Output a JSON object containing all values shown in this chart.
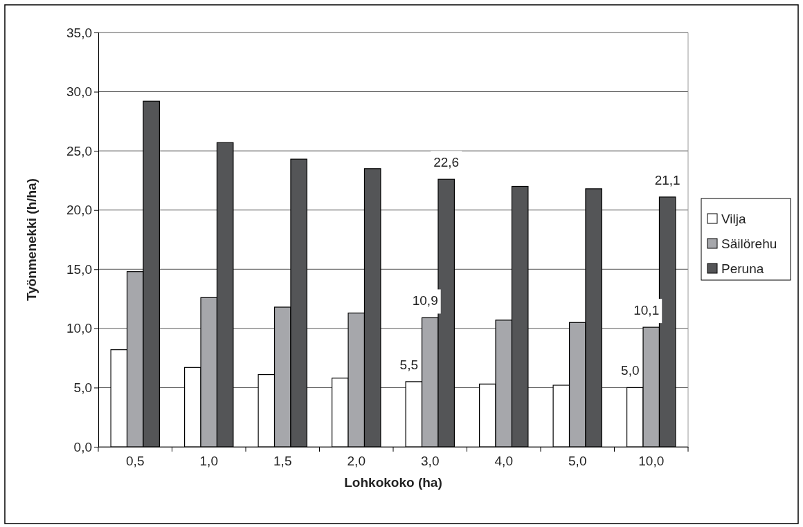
{
  "chart_data": {
    "type": "bar",
    "xlabel": "Lohkokoko (ha)",
    "ylabel": "Työnmenekki (h/ha)",
    "categories": [
      "0,5",
      "1,0",
      "1,5",
      "2,0",
      "3,0",
      "4,0",
      "5,0",
      "10,0"
    ],
    "series": [
      {
        "name": "Vilja",
        "color": "#ffffff",
        "values": [
          8.2,
          6.7,
          6.1,
          5.8,
          5.5,
          5.3,
          5.2,
          5.0
        ],
        "value_labels": [
          null,
          null,
          null,
          null,
          "5,5",
          null,
          null,
          "5,0"
        ]
      },
      {
        "name": "Säilörehu",
        "color": "#a6a7ab",
        "values": [
          14.8,
          12.6,
          11.8,
          11.3,
          10.9,
          10.7,
          10.5,
          10.1
        ],
        "value_labels": [
          null,
          null,
          null,
          null,
          "10,9",
          null,
          null,
          "10,1"
        ]
      },
      {
        "name": "Peruna",
        "color": "#545557",
        "values": [
          29.2,
          25.7,
          24.3,
          23.5,
          22.6,
          22.0,
          21.8,
          21.1
        ],
        "value_labels": [
          null,
          null,
          null,
          null,
          "22,6",
          null,
          null,
          "21,1"
        ]
      }
    ],
    "ylim": [
      0,
      35
    ],
    "yticks": [
      {
        "value": 0,
        "label": "0,0"
      },
      {
        "value": 5,
        "label": "5,0"
      },
      {
        "value": 10,
        "label": "10,0"
      },
      {
        "value": 15,
        "label": "15,0"
      },
      {
        "value": 20,
        "label": "20,0"
      },
      {
        "value": 25,
        "label": "25,0"
      },
      {
        "value": 30,
        "label": "30,0"
      },
      {
        "value": 35,
        "label": "35,0"
      }
    ],
    "grid": "y",
    "legend": "right"
  }
}
